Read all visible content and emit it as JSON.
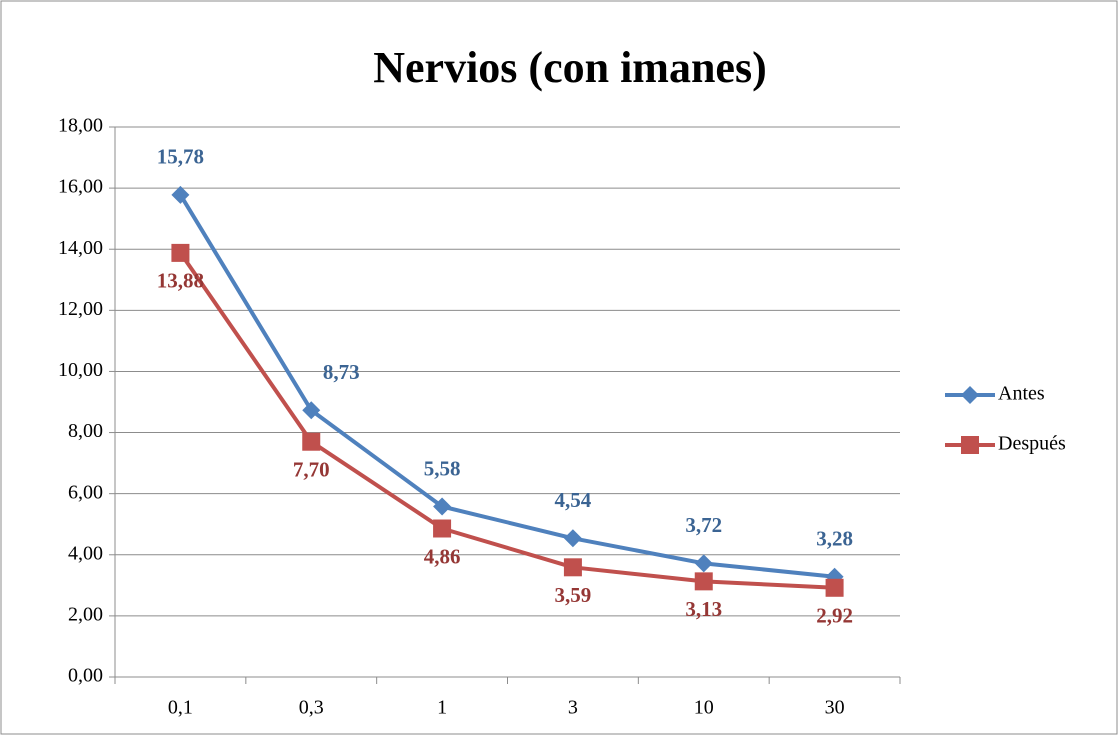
{
  "chart_data": {
    "type": "line",
    "title": "Nervios (con imanes)",
    "categories": [
      "0,1",
      "0,3",
      "1",
      "3",
      "10",
      "30"
    ],
    "series": [
      {
        "name": "Antes",
        "color": "#4f81bd",
        "label_color": "#3b6493",
        "marker": "diamond",
        "values": [
          15.78,
          8.73,
          5.58,
          4.54,
          3.72,
          3.28
        ],
        "value_labels": [
          "15,78",
          "8,73",
          "5,58",
          "4,54",
          "3,72",
          "3,28"
        ]
      },
      {
        "name": "Después",
        "color": "#c0504d",
        "label_color": "#953735",
        "marker": "square",
        "values": [
          13.88,
          7.7,
          4.86,
          3.59,
          3.13,
          2.92
        ],
        "value_labels": [
          "13,88",
          "7,70",
          "4,86",
          "3,59",
          "3,13",
          "2,92"
        ]
      }
    ],
    "ylim": [
      0,
      18
    ],
    "yticks": [
      {
        "value": 0,
        "label": "0,00"
      },
      {
        "value": 2,
        "label": "2,00"
      },
      {
        "value": 4,
        "label": "4,00"
      },
      {
        "value": 6,
        "label": "6,00"
      },
      {
        "value": 8,
        "label": "8,00"
      },
      {
        "value": 10,
        "label": "10,00"
      },
      {
        "value": 12,
        "label": "12,00"
      },
      {
        "value": 14,
        "label": "14,00"
      },
      {
        "value": 16,
        "label": "16,00"
      },
      {
        "value": 18,
        "label": "18,00"
      }
    ],
    "grid": true,
    "legend": "right"
  }
}
